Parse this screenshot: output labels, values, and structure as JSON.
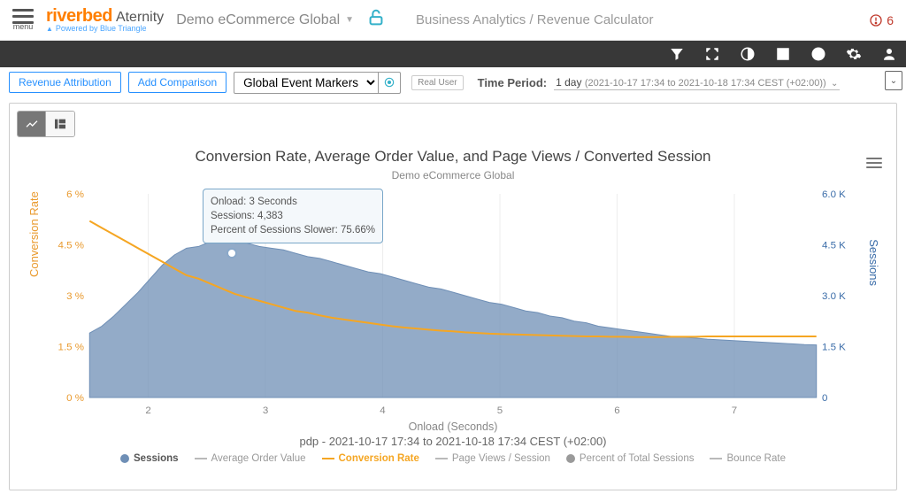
{
  "menu_label": "menu",
  "brand": {
    "logo": "riverbed",
    "product": "Aternity",
    "sub": "Powered by Blue Triangle"
  },
  "app_name": "Demo eCommerce Global",
  "breadcrumb": "Business Analytics / Revenue Calculator",
  "alert_count": "6",
  "filters": {
    "revenue_btn": "Revenue Attribution",
    "add_comp_btn": "Add Comparison",
    "marker_select": "Global Event Markers",
    "real_user": "Real User",
    "tp_label": "Time Period:",
    "tp_value": "1 day",
    "tp_range": "(2021-10-17 17:34 to 2021-10-18 17:34 CEST (+02:00))"
  },
  "chart": {
    "title": "Conversion Rate, Average Order Value, and Page Views / Converted Session",
    "subtitle": "Demo eCommerce Global",
    "x_title": "Onload (Seconds)",
    "x_sub": "pdp - 2021-10-17 17:34 to 2021-10-18 17:34 CEST (+02:00)",
    "y_left_title": "Conversion Rate",
    "y_right_title": "Sessions",
    "y_left_ticks": [
      "0 %",
      "1.5 %",
      "3 %",
      "4.5 %",
      "6 %"
    ],
    "y_right_ticks": [
      "0",
      "1.5 K",
      "3.0 K",
      "4.5 K",
      "6.0 K"
    ],
    "x_ticks": [
      "2",
      "3",
      "4",
      "5",
      "6",
      "7"
    ],
    "colors": {
      "sessions_fill": "#6f8fb6",
      "sessions_fill_op": "0.75",
      "conversion": "#f5a623",
      "grid": "#eeeeee",
      "axis": "#cccccc"
    },
    "sessions": [
      1900,
      2100,
      2400,
      2750,
      3100,
      3500,
      3900,
      4200,
      4400,
      4450,
      4600,
      4600,
      4550,
      4550,
      4450,
      4400,
      4350,
      4250,
      4150,
      4100,
      4000,
      3900,
      3800,
      3700,
      3650,
      3550,
      3450,
      3350,
      3250,
      3200,
      3100,
      3000,
      2900,
      2800,
      2750,
      2650,
      2550,
      2500,
      2400,
      2350,
      2250,
      2200,
      2100,
      2050,
      2000,
      1950,
      1900,
      1850,
      1800,
      1780,
      1750,
      1720,
      1700,
      1680,
      1660,
      1640,
      1620,
      1600,
      1580,
      1560,
      1550
    ],
    "conversion": [
      5.2,
      5.0,
      4.8,
      4.6,
      4.4,
      4.2,
      4.0,
      3.8,
      3.6,
      3.5,
      3.35,
      3.2,
      3.05,
      2.95,
      2.85,
      2.75,
      2.65,
      2.55,
      2.5,
      2.42,
      2.35,
      2.3,
      2.25,
      2.2,
      2.15,
      2.1,
      2.06,
      2.03,
      2.0,
      1.97,
      1.95,
      1.92,
      1.9,
      1.88,
      1.87,
      1.86,
      1.85,
      1.84,
      1.83,
      1.82,
      1.81,
      1.8,
      1.8,
      1.79,
      1.79,
      1.78,
      1.78,
      1.78,
      1.79,
      1.79,
      1.79,
      1.8,
      1.8,
      1.8,
      1.8,
      1.8,
      1.8,
      1.8,
      1.8,
      1.8,
      1.8
    ],
    "xlim": [
      1.5,
      7.7
    ],
    "ylim_left": [
      0,
      6
    ],
    "ylim_right": [
      0,
      6000
    ],
    "tooltip": {
      "l1": "Onload: 3 Seconds",
      "l2": "Sessions: 4,383",
      "l3": "Percent of Sessions Slower: 75.66%"
    }
  },
  "legend": [
    {
      "label": "Sessions",
      "kind": "dot",
      "color": "#6f8fb6"
    },
    {
      "label": "Average Order Value",
      "kind": "line",
      "color": "#b9b9b9"
    },
    {
      "label": "Conversion Rate",
      "kind": "line",
      "color": "#f5a623"
    },
    {
      "label": "Page Views / Session",
      "kind": "line",
      "color": "#b9b9b9"
    },
    {
      "label": "Percent of Total Sessions",
      "kind": "dot",
      "color": "#9a9a9a"
    },
    {
      "label": "Bounce Rate",
      "kind": "line",
      "color": "#b9b9b9"
    }
  ]
}
